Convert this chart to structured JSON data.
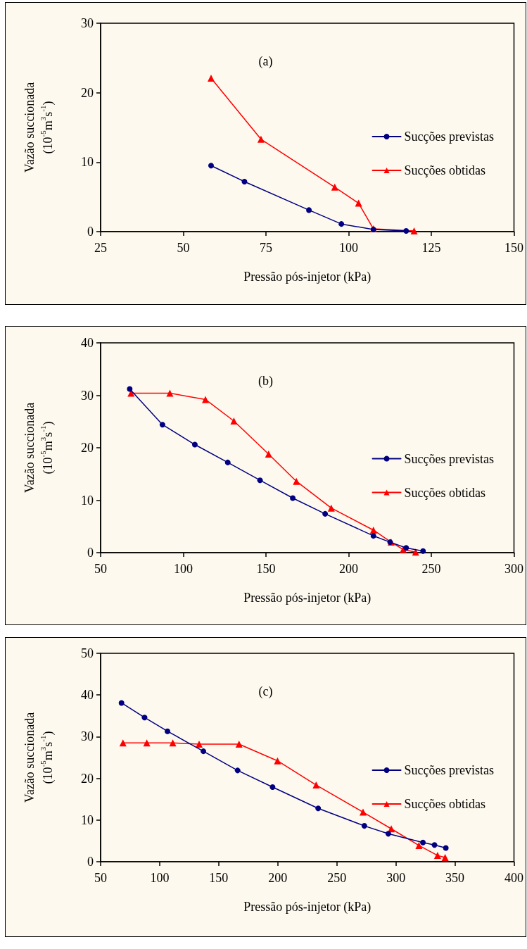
{
  "chart_data": [
    {
      "type": "line",
      "annotations": [
        "(a)"
      ],
      "xlabel": "Pressão pós-injetor (kPa)",
      "ylabel": "Vazão succionada\n(10$^{-5}$m$^{3}$s$^{-1}$)",
      "xlim": [
        25,
        150
      ],
      "xticks": [
        25,
        50,
        75,
        100,
        125,
        150
      ],
      "ylim": [
        0,
        30
      ],
      "yticks": [
        0,
        10,
        20,
        30
      ],
      "grid": false,
      "legend": "right",
      "line_style": "solid",
      "series": [
        {
          "name": "Sucções previstas",
          "color": "#000080",
          "marker": "circle",
          "x": [
            58.4,
            68.5,
            88,
            97.8,
            107.5,
            117.4
          ],
          "values": [
            9.5,
            7.2,
            3.1,
            1.1,
            0.3,
            0.1
          ]
        },
        {
          "name": "Sucções obtidas",
          "color": "#ff0000",
          "marker": "triangle",
          "x": [
            58.4,
            73.5,
            95.8,
            103,
            107.5,
            119.8
          ],
          "values": [
            22.1,
            13.3,
            6.4,
            4.1,
            0.4,
            0.1
          ]
        }
      ]
    },
    {
      "type": "line",
      "annotations": [
        "(b)"
      ],
      "xlabel": "Pressão pós-injetor (kPa)",
      "ylabel": "Vazão succionada\n(10$^{-5}$m$^{3}$s$^{-1}$)",
      "xlim": [
        50,
        300
      ],
      "xticks": [
        50,
        100,
        150,
        200,
        250,
        300
      ],
      "ylim": [
        0,
        40
      ],
      "yticks": [
        0,
        10,
        20,
        30,
        40
      ],
      "grid": false,
      "legend": "right",
      "line_style": "solid",
      "series": [
        {
          "name": "Sucções previstas",
          "color": "#000080",
          "marker": "circle",
          "x": [
            67.6,
            87.4,
            107,
            126.9,
            146.4,
            166.2,
            185.8,
            215,
            225.1,
            234.8,
            245
          ],
          "values": [
            31.2,
            24.4,
            20.6,
            17.2,
            13.8,
            10.4,
            7.4,
            3.2,
            2.0,
            0.9,
            0.3
          ]
        },
        {
          "name": "Sucções obtidas",
          "color": "#ff0000",
          "marker": "triangle",
          "x": [
            68.4,
            91.9,
            113.4,
            130.6,
            151.6,
            168.4,
            189.5,
            215,
            225.7,
            233,
            240.5
          ],
          "values": [
            30.4,
            30.4,
            29.2,
            25.1,
            18.8,
            13.6,
            8.5,
            4.3,
            2.0,
            0.6,
            0.1
          ]
        }
      ]
    },
    {
      "type": "line",
      "annotations": [
        "(c)"
      ],
      "xlabel": "Pressão pós-injetor (kPa)",
      "ylabel": "Vazão succionada\n(10$^{-5}$m$^{3}$s$^{-1}$)",
      "xlim": [
        50,
        400
      ],
      "xticks": [
        50,
        100,
        150,
        200,
        250,
        300,
        350,
        400
      ],
      "ylim": [
        0,
        50
      ],
      "yticks": [
        0,
        10,
        20,
        30,
        40,
        50
      ],
      "grid": false,
      "legend": "right",
      "line_style": "solid",
      "series": [
        {
          "name": "Sucções previstas",
          "color": "#000080",
          "marker": "circle",
          "x": [
            67.7,
            87.2,
            106.6,
            137,
            166,
            195.6,
            234.2,
            273.3,
            293.6,
            322.9,
            332.7,
            342.3
          ],
          "values": [
            38.1,
            34.6,
            31.3,
            26.5,
            21.9,
            17.9,
            12.8,
            8.6,
            6.7,
            4.6,
            4.0,
            3.3
          ]
        },
        {
          "name": "Sucções obtidas",
          "color": "#ff0000",
          "marker": "triangle",
          "x": [
            68.9,
            89.1,
            111.1,
            133.4,
            167.2,
            199.8,
            232.5,
            272.2,
            296.1,
            319.5,
            335.3,
            341.7
          ],
          "values": [
            28.5,
            28.5,
            28.5,
            28.2,
            28.2,
            24.2,
            18.4,
            11.9,
            7.9,
            3.9,
            1.5,
            1.0
          ]
        }
      ]
    }
  ]
}
